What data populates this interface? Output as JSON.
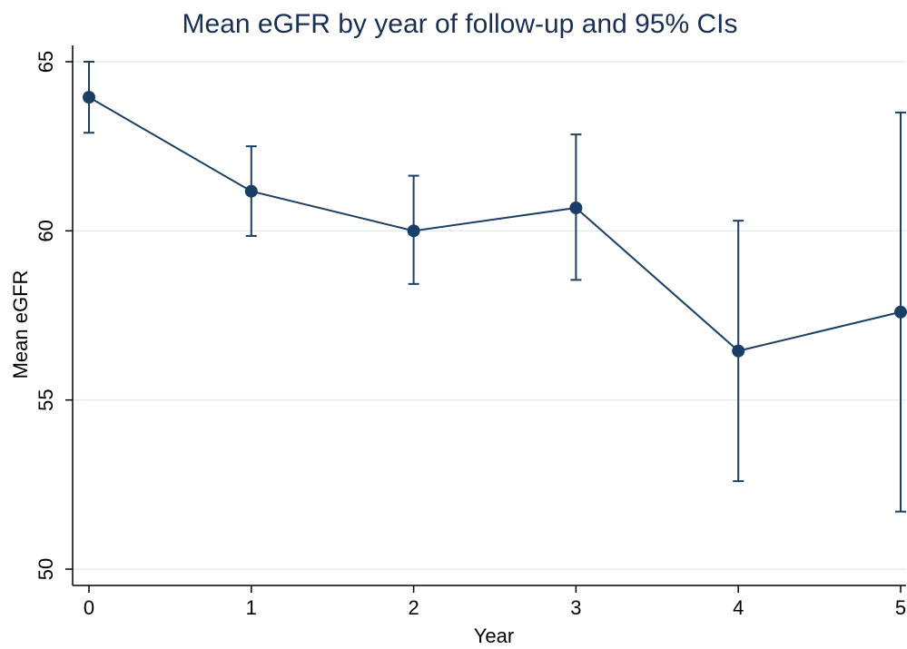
{
  "chart_data": {
    "type": "line",
    "title": "Mean eGFR by year of follow-up and 95% CIs",
    "xlabel": "Year",
    "ylabel": "Mean eGFR",
    "x": [
      0,
      1,
      2,
      3,
      4,
      5
    ],
    "x_ticks": [
      "0",
      "1",
      "2",
      "3",
      "4",
      "5"
    ],
    "y_ticks": [
      "50",
      "55",
      "60",
      "65"
    ],
    "xlim": [
      0,
      5
    ],
    "ylim": [
      50,
      65
    ],
    "grid": true,
    "series": [
      {
        "values": [
          63.95,
          61.17,
          60.0,
          60.68,
          56.45,
          57.6
        ],
        "ci_lower": [
          62.9,
          59.85,
          58.43,
          58.55,
          52.6,
          51.7
        ],
        "ci_upper": [
          65.0,
          62.5,
          61.63,
          62.85,
          60.3,
          63.5
        ],
        "color": "#1a3f66"
      }
    ]
  }
}
